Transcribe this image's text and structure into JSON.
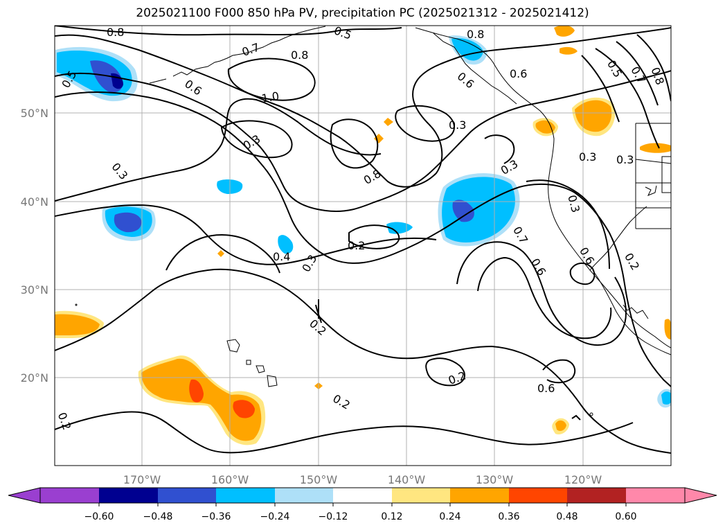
{
  "figure": {
    "title": "2025021100 F000 850 hPa PV, precipitation PC (2025021312 - 2025021412)"
  },
  "map": {
    "lon_ticks": [
      "170°W",
      "160°W",
      "150°W",
      "140°W",
      "130°W",
      "120°W"
    ],
    "lat_ticks": [
      "50°N",
      "40°N",
      "30°N",
      "20°N"
    ],
    "contour_labels": [
      "0.8",
      "0.5",
      "0.8",
      "0.7",
      "0.8",
      "0.5",
      "0.6",
      "0.7",
      "0.8",
      "0.6",
      "1.0",
      "0.3",
      "0.3",
      "0.3",
      "0.3",
      "0.3",
      "0.8",
      "0.3",
      "0.3",
      "0.4",
      "0.2",
      "0.3",
      "0.2",
      "0.7",
      "0.6",
      "0.6",
      "0.2",
      "0.2",
      "0.6",
      "0.2",
      "0.6",
      "0.2",
      "0.5"
    ]
  },
  "colorbar": {
    "tick_labels": [
      "−0.60",
      "−0.48",
      "−0.36",
      "−0.24",
      "−0.12",
      "0.12",
      "0.24",
      "0.36",
      "0.48",
      "0.60"
    ],
    "colors": [
      "#9a3fd0",
      "#000090",
      "#3050d0",
      "#00bfff",
      "#aee0f8",
      "#ffffff",
      "#ffe680",
      "#ffa500",
      "#ff4500",
      "#b22222",
      "#ff88aa"
    ]
  }
}
